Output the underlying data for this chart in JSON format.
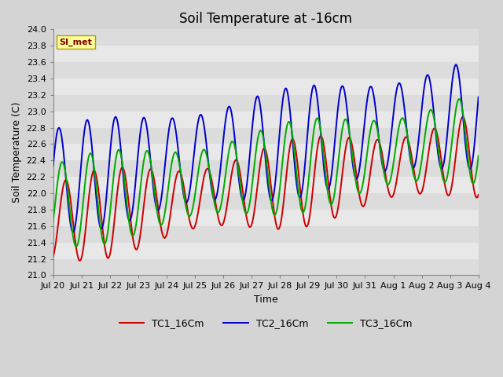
{
  "title": "Soil Temperature at -16cm",
  "xlabel": "Time",
  "ylabel": "Soil Temperature (C)",
  "ylim": [
    21.0,
    24.0
  ],
  "yticks": [
    21.0,
    21.2,
    21.4,
    21.6,
    21.8,
    22.0,
    22.2,
    22.4,
    22.6,
    22.8,
    23.0,
    23.2,
    23.4,
    23.6,
    23.8,
    24.0
  ],
  "xtick_labels": [
    "Jul 20",
    "Jul 21",
    "Jul 22",
    "Jul 23",
    "Jul 24",
    "Jul 25",
    "Jul 26",
    "Jul 27",
    "Jul 28",
    "Jul 29",
    "Jul 30",
    "Jul 31",
    "Aug 1",
    "Aug 2",
    "Aug 3",
    "Aug 4"
  ],
  "line_colors": [
    "#cc0000",
    "#0000cc",
    "#00aa00"
  ],
  "line_labels": [
    "TC1_16Cm",
    "TC2_16Cm",
    "TC3_16Cm"
  ],
  "legend_label": "SI_met",
  "fig_bg_color": "#d4d4d4",
  "plot_bg_color": "#e8e8e8",
  "stripe_colors": [
    "#dcdcdc",
    "#e8e8e8"
  ],
  "title_fontsize": 12,
  "axis_label_fontsize": 9,
  "tick_fontsize": 8
}
